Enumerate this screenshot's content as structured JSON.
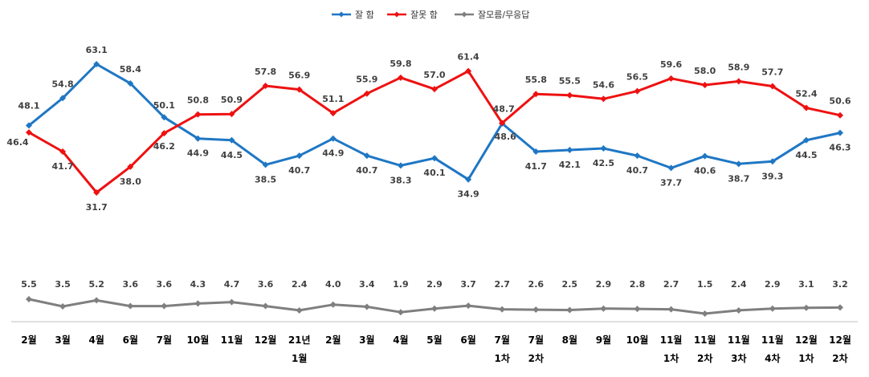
{
  "chart_data": {
    "type": "line",
    "categories": [
      [
        "2월"
      ],
      [
        "3월"
      ],
      [
        "4월"
      ],
      [
        "6월"
      ],
      [
        "7월"
      ],
      [
        "10월"
      ],
      [
        "11월"
      ],
      [
        "12월"
      ],
      [
        "21년",
        "1월"
      ],
      [
        "2월"
      ],
      [
        "3월"
      ],
      [
        "4월"
      ],
      [
        "5월"
      ],
      [
        "6월"
      ],
      [
        "7월",
        "1차"
      ],
      [
        "7월",
        "2차"
      ],
      [
        "8월"
      ],
      [
        "9월"
      ],
      [
        "10월"
      ],
      [
        "11월",
        "1차"
      ],
      [
        "11월",
        "2차"
      ],
      [
        "11월",
        "3차"
      ],
      [
        "11월",
        "4차"
      ],
      [
        "12월",
        "1차"
      ],
      [
        "12월",
        "2차"
      ]
    ],
    "series": [
      {
        "name": "잘 함",
        "color": "#1f77c4",
        "values": [
          48.1,
          54.8,
          63.1,
          58.4,
          50.1,
          44.9,
          44.5,
          38.5,
          40.7,
          44.9,
          40.7,
          38.3,
          40.1,
          34.9,
          48.6,
          41.7,
          42.1,
          42.5,
          40.7,
          37.7,
          40.6,
          38.7,
          39.3,
          44.5,
          46.3
        ]
      },
      {
        "name": "잘못 함",
        "color": "#ee1111",
        "values": [
          46.4,
          41.7,
          31.7,
          38.0,
          46.2,
          50.8,
          50.9,
          57.8,
          56.9,
          51.1,
          55.9,
          59.8,
          57.0,
          61.4,
          48.7,
          55.8,
          55.5,
          54.6,
          56.5,
          59.6,
          58.0,
          58.9,
          57.7,
          52.4,
          50.6
        ]
      },
      {
        "name": "잘모름/무응답",
        "color": "#7f7f7f",
        "values": [
          5.5,
          3.5,
          5.2,
          3.6,
          3.6,
          4.3,
          4.7,
          3.6,
          2.4,
          4.0,
          3.4,
          1.9,
          2.9,
          3.7,
          2.7,
          2.6,
          2.5,
          2.9,
          2.8,
          2.7,
          1.5,
          2.4,
          2.9,
          3.1,
          3.2
        ]
      }
    ],
    "labels": {
      "잘 함": [
        "48.1",
        "54.8",
        "63.1",
        "58.4",
        "50.1",
        "44.9",
        "44.5",
        "38.5",
        "40.7",
        "44.9",
        "40.7",
        "38.3",
        "40.1",
        "34.9",
        "48.6",
        "41.7",
        "42.1",
        "42.5",
        "40.7",
        "37.7",
        "40.6",
        "38.7",
        "39.3",
        "44.5",
        "46.3"
      ],
      "잘못 함": [
        "46.4",
        "41.7",
        "31.7",
        "38.0",
        "46.2",
        "50.8",
        "50.9",
        "57.8",
        "56.9",
        "51.1",
        "55.9",
        "59.8",
        "57.0",
        "61.4",
        "48.7",
        "55.8",
        "55.5",
        "54.6",
        "56.5",
        "59.6",
        "58.0",
        "58.9",
        "57.7",
        "52.4",
        "50.6"
      ],
      "잘모름/무응답": [
        "5.5",
        "3.5",
        "5.2",
        "3.6",
        "3.6",
        "4.3",
        "4.7",
        "3.6",
        "2.4",
        "4.0",
        "3.4",
        "1.9",
        "2.9",
        "3.7",
        "2.7",
        "2.6",
        "2.5",
        "2.9",
        "2.8",
        "2.7",
        "1.5",
        "2.4",
        "2.9",
        "3.1",
        "3.2"
      ]
    },
    "title": "",
    "xlabel": "",
    "ylabel": "",
    "legend_position": "top",
    "grid": false
  }
}
